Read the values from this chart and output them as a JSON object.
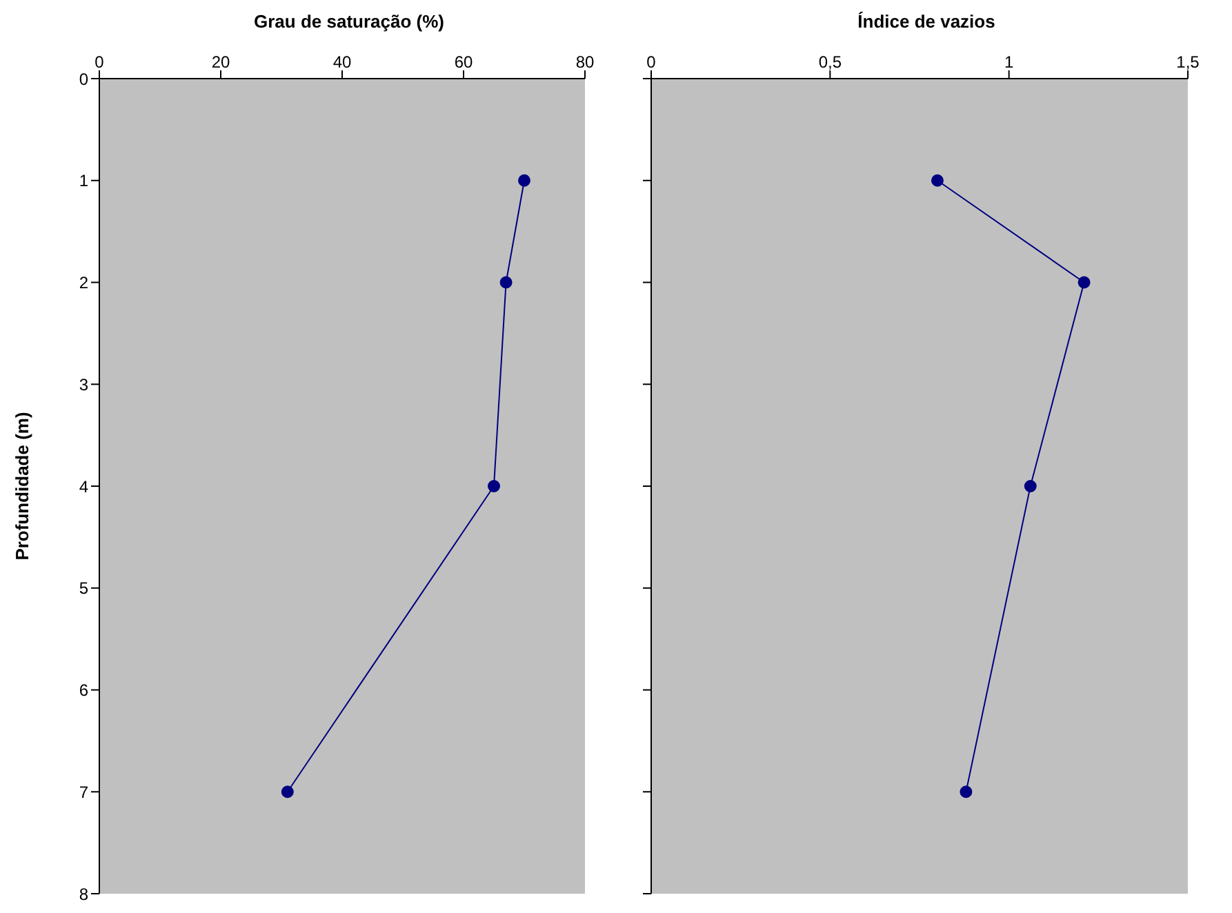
{
  "chart_data": [
    {
      "type": "line",
      "xlabel": "Grau de saturação (%)",
      "ylabel": "Profundidade (m)",
      "x": [
        70,
        67,
        65,
        31
      ],
      "values": [
        1,
        2,
        4,
        7
      ],
      "color": "#000080",
      "marker": "circle",
      "xlim": [
        0,
        80
      ],
      "xticks": [
        0,
        20,
        40,
        60,
        80
      ],
      "ylim": [
        8,
        0
      ],
      "yticks": [
        0,
        1,
        2,
        3,
        4,
        5,
        6,
        7,
        8
      ],
      "grid": false,
      "legend": false
    },
    {
      "type": "line",
      "xlabel": "Índice de vazios",
      "x": [
        0.8,
        1.21,
        1.06,
        0.88
      ],
      "values": [
        1,
        2,
        4,
        7
      ],
      "color": "#000080",
      "marker": "circle",
      "xlim": [
        0,
        1.5
      ],
      "xticks": [
        0,
        {
          "value": 0.5,
          "label": "0,5"
        },
        1,
        {
          "value": 1.5,
          "label": "1,5"
        }
      ],
      "ylim": [
        8,
        0
      ],
      "yticks": [
        0,
        1,
        2,
        3,
        4,
        5,
        6,
        7,
        8
      ],
      "tick_labels": "x",
      "grid": false,
      "legend": false
    }
  ]
}
